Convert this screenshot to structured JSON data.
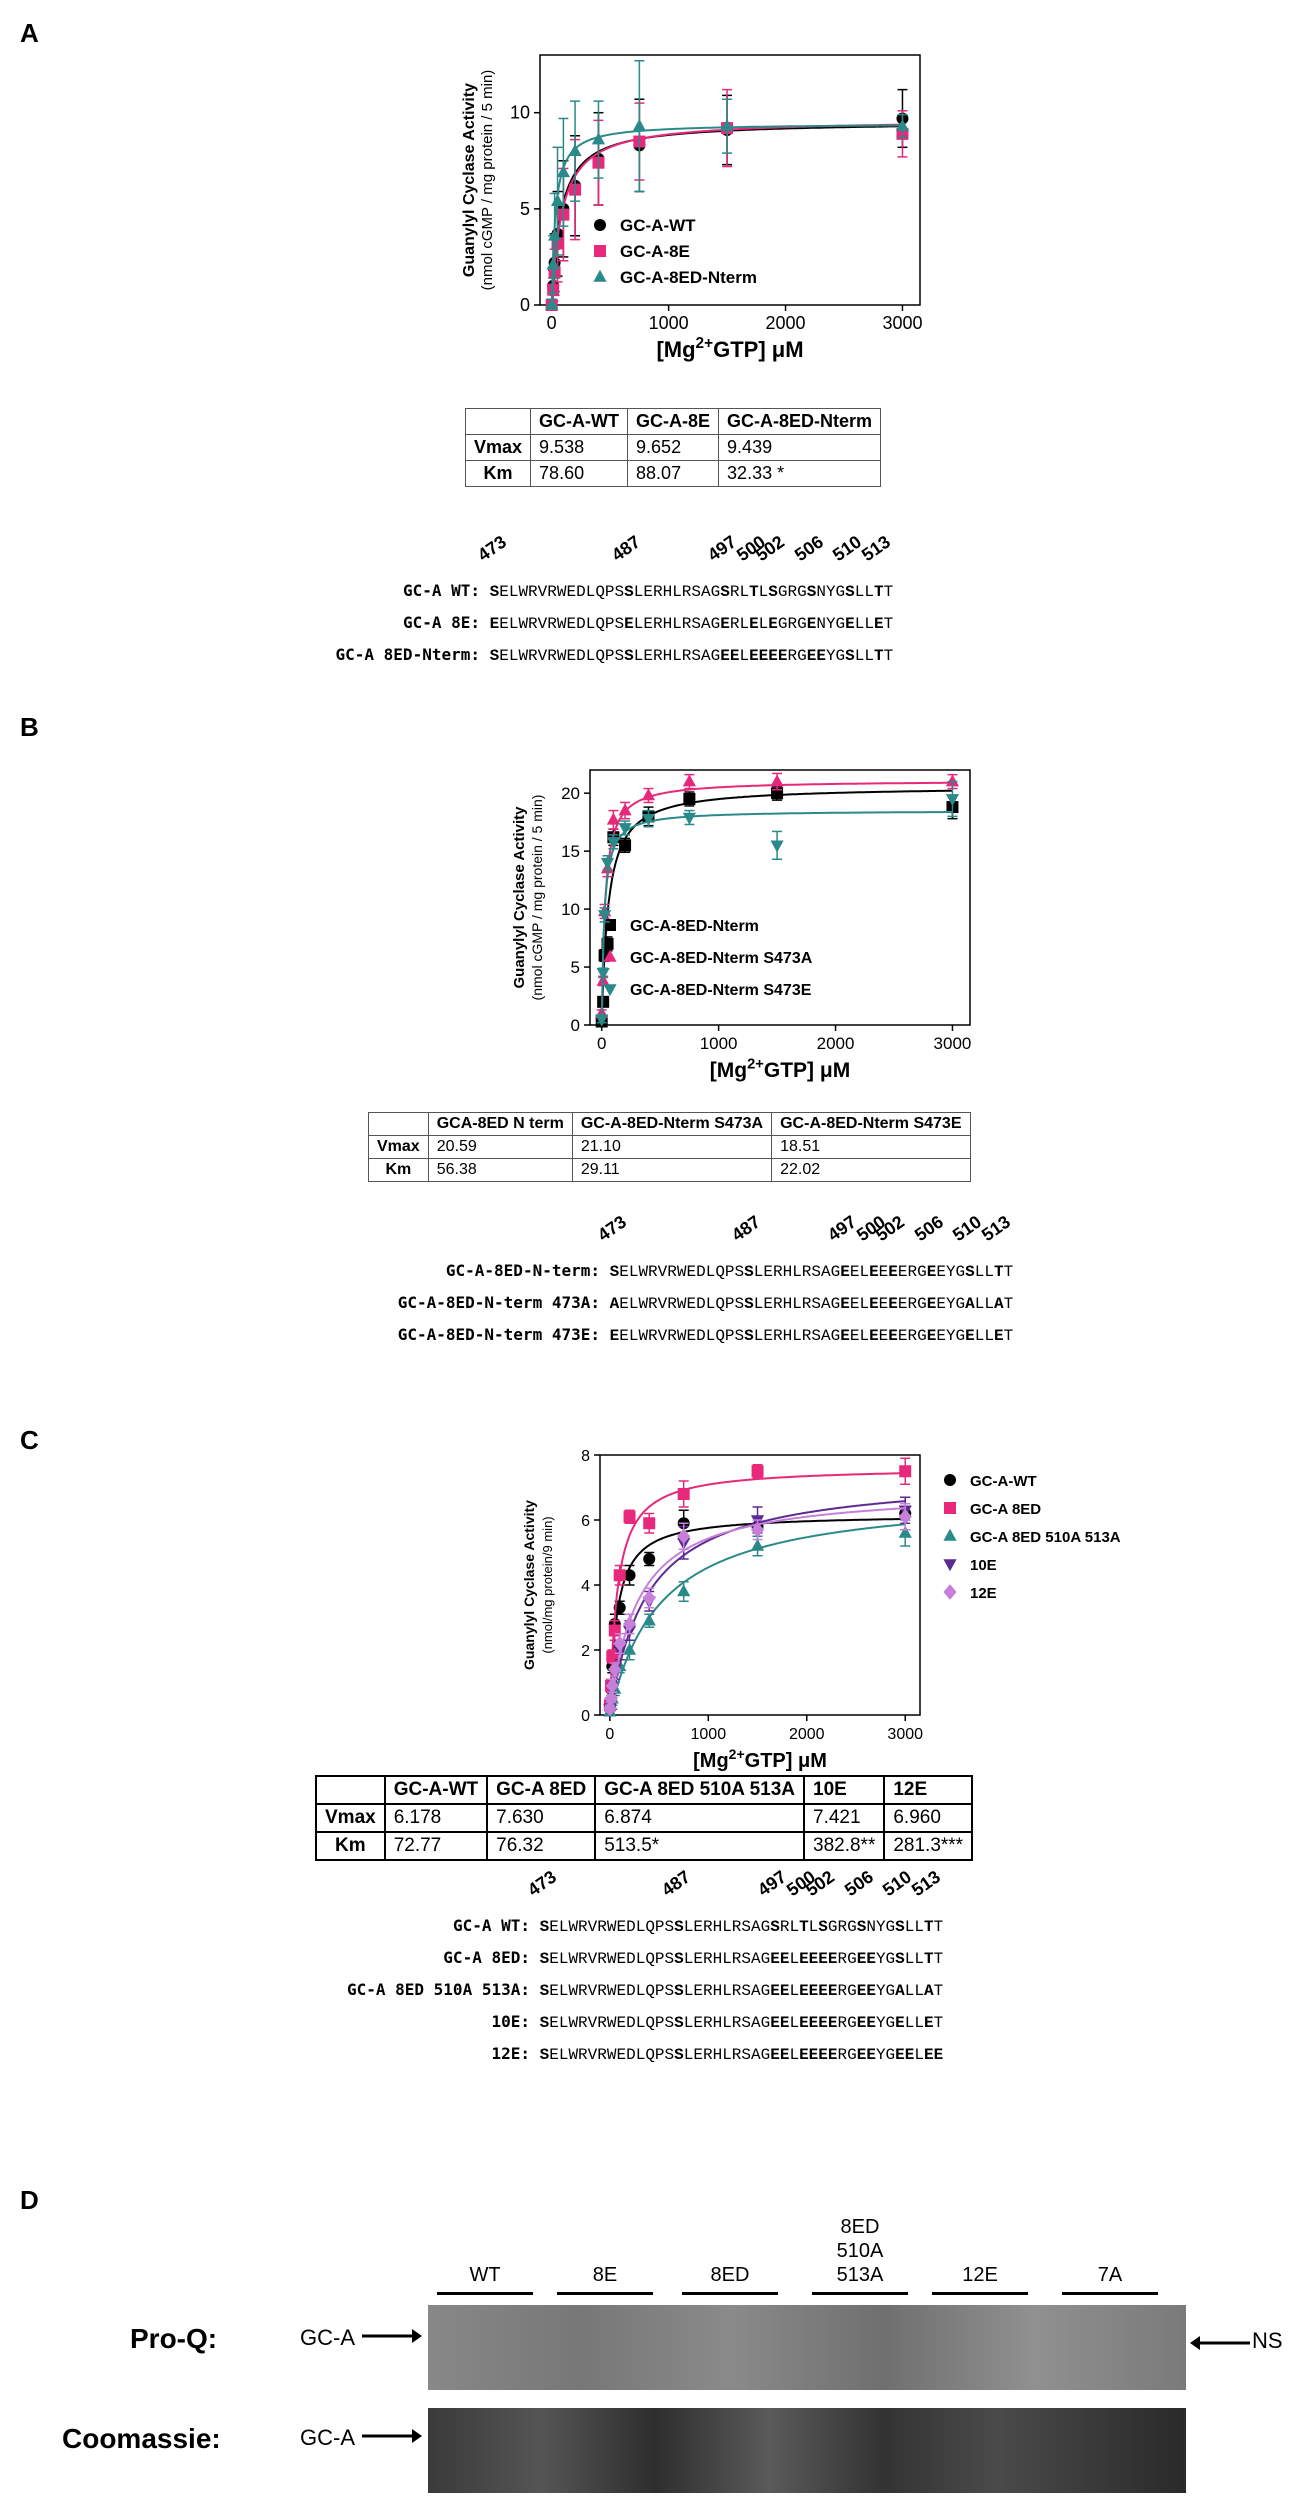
{
  "panels": {
    "A": {
      "letter": "A",
      "chart_data": {
        "type": "scatter",
        "ylabel_line1": "Guanylyl Cyclase Activity",
        "ylabel_line2": "(nmol cGMP / mg protein / 5 min)",
        "xlabel": "[Mg2+GTP] μM",
        "xlim": [
          -100,
          3150
        ],
        "ylim": [
          0,
          13
        ],
        "xticks": [
          0,
          1000,
          2000,
          3000
        ],
        "yticks": [
          0,
          5,
          10
        ],
        "legend": "right",
        "series": [
          {
            "name": "GC-A-WT",
            "color": "#000000",
            "marker": "circle",
            "vmax": 9.538,
            "km": 78.6,
            "x": [
              0,
              12.5,
              25,
              50,
              100,
              200,
              400,
              750,
              1500,
              3000
            ],
            "y": [
              0,
              1.0,
              2.2,
              3.7,
              5.0,
              6.2,
              7.6,
              8.3,
              9.1,
              9.7
            ],
            "err": [
              0.3,
              0.8,
              1.5,
              2.2,
              2.5,
              2.6,
              2.4,
              2.4,
              1.8,
              1.5
            ]
          },
          {
            "name": "GC-A-8E",
            "color": "#e8287a",
            "marker": "square",
            "vmax": 9.652,
            "km": 88.07,
            "x": [
              0,
              12.5,
              25,
              50,
              100,
              200,
              400,
              750,
              1500,
              3000
            ],
            "y": [
              0,
              0.8,
              1.7,
              3.2,
              4.7,
              6.0,
              7.4,
              8.5,
              9.2,
              8.9
            ],
            "err": [
              0.3,
              0.6,
              1.2,
              2.0,
              2.4,
              2.6,
              2.2,
              2.0,
              2.0,
              1.2
            ]
          },
          {
            "name": "GC-A-8ED-Nterm",
            "color": "#2a8a8a",
            "marker": "triangle",
            "vmax": 9.439,
            "km": 32.33,
            "x": [
              0,
              12.5,
              25,
              50,
              100,
              200,
              400,
              750,
              1500,
              3000
            ],
            "y": [
              0,
              2.1,
              3.6,
              5.4,
              6.9,
              8.0,
              8.6,
              9.3,
              9.3,
              9.3
            ],
            "err": [
              0.3,
              1.5,
              2.2,
              2.8,
              2.8,
              2.6,
              2.0,
              3.4,
              1.4,
              0.6
            ]
          }
        ]
      },
      "table": {
        "headers": [
          "",
          "GC-A-WT",
          "GC-A-8E",
          "GC-A-8ED-Nterm"
        ],
        "rows": [
          [
            "Vmax",
            "9.538",
            "9.652",
            "9.439"
          ],
          [
            "Km",
            "78.60",
            "88.07",
            "32.33 *"
          ]
        ]
      },
      "positions": [
        "473",
        "487",
        "497",
        "500",
        "502",
        "506",
        "510",
        "513"
      ],
      "sequences": [
        {
          "label": "GC-A WT:",
          "seq": "SELWRVRWEDLQPSSLERHLRSAGSRLTLSGRGSNYGSLLTT"
        },
        {
          "label": "GC-A 8E:",
          "seq": "EELWRVRWEDLQPSELERHLRSAGERLELEGRGENYGELLET"
        },
        {
          "label": "GC-A 8ED-Nterm:",
          "seq": "SELWRVRWEDLQPSSLERHLRSAGEELEEEERGEEYGSLLTT"
        }
      ]
    },
    "B": {
      "letter": "B",
      "chart_data": {
        "type": "scatter",
        "ylabel_line1": "Guanylyl Cyclase Activity",
        "ylabel_line2": "(nmol cGMP / mg protein / 5 min)",
        "xlabel": "[Mg2+GTP] μM",
        "xlim": [
          -100,
          3150
        ],
        "ylim": [
          0,
          22
        ],
        "xticks": [
          0,
          1000,
          2000,
          3000
        ],
        "yticks": [
          0,
          5,
          10,
          15,
          20
        ],
        "legend": "right",
        "series": [
          {
            "name": "GC-A-8ED-Nterm",
            "color": "#000000",
            "marker": "square",
            "vmax": 20.59,
            "km": 56.38,
            "x": [
              0,
              12.5,
              25,
              50,
              100,
              200,
              400,
              750,
              1500,
              3000
            ],
            "y": [
              0.3,
              2.0,
              6.0,
              7.0,
              16.2,
              15.5,
              18.0,
              19.5,
              20.0,
              18.8
            ],
            "err": [
              0.2,
              0.3,
              0.5,
              0.6,
              0.7,
              0.6,
              0.8,
              0.6,
              0.6,
              1.0
            ]
          },
          {
            "name": "GC-A-8ED-Nterm S473A",
            "color": "#e8287a",
            "marker": "triangle",
            "vmax": 21.1,
            "km": 29.11,
            "x": [
              0,
              12.5,
              25,
              50,
              100,
              200,
              400,
              750,
              1500,
              3000
            ],
            "y": [
              1.0,
              3.8,
              9.8,
              13.5,
              17.7,
              18.5,
              19.8,
              21.0,
              21.0,
              21.0
            ],
            "err": [
              0.3,
              0.4,
              0.6,
              0.7,
              0.8,
              0.7,
              0.6,
              0.6,
              0.7,
              0.6
            ]
          },
          {
            "name": "GC-A-8ED-Nterm S473E",
            "color": "#2a8a8a",
            "marker": "triangle-down",
            "vmax": 18.51,
            "km": 22.02,
            "x": [
              0,
              12.5,
              25,
              50,
              100,
              200,
              400,
              750,
              1500,
              3000
            ],
            "y": [
              0.5,
              4.5,
              9.5,
              14.0,
              15.8,
              17.0,
              17.8,
              17.9,
              15.5,
              19.5
            ],
            "err": [
              0.3,
              0.4,
              0.6,
              0.6,
              0.6,
              0.6,
              0.7,
              0.6,
              1.2,
              1.5
            ]
          }
        ]
      },
      "table": {
        "headers": [
          "",
          "GCA-8ED N term",
          "GC-A-8ED-Nterm S473A",
          "GC-A-8ED-Nterm S473E"
        ],
        "rows": [
          [
            "Vmax",
            "20.59",
            "21.10",
            "18.51"
          ],
          [
            "Km",
            "56.38",
            "29.11",
            "22.02"
          ]
        ]
      },
      "positions": [
        "473",
        "487",
        "497",
        "500",
        "502",
        "506",
        "510",
        "513"
      ],
      "sequences": [
        {
          "label": "GC-A-8ED-N-term:",
          "seq": "SELWRVRWEDLQPSSLERHLRSAGEELEEEERGEEYGSLLTT"
        },
        {
          "label": "GC-A-8ED-N-term 473A:",
          "seq": "AELWRVRWEDLQPSSLERHLRSAGEELEEEERGEEYGALLAT"
        },
        {
          "label": "GC-A-8ED-N-term 473E:",
          "seq": "EELWRVRWEDLQPSSLERHLRSAGEELEEEERGEEYGELLET"
        }
      ]
    },
    "C": {
      "letter": "C",
      "chart_data": {
        "type": "scatter",
        "ylabel_line1": "Guanylyl Cyclase Activity",
        "ylabel_line2": "(nmol/mg protein/9 min)",
        "xlabel": "[Mg2+GTP] μM",
        "xlim": [
          -100,
          3150
        ],
        "ylim": [
          0,
          8
        ],
        "xticks": [
          0,
          1000,
          2000,
          3000
        ],
        "yticks": [
          0,
          2,
          4,
          6,
          8
        ],
        "legend": "right",
        "series": [
          {
            "name": "GC-A-WT",
            "color": "#000000",
            "marker": "circle",
            "vmax": 6.178,
            "km": 72.77,
            "x": [
              0,
              12.5,
              25,
              50,
              100,
              200,
              400,
              750,
              1500,
              3000
            ],
            "y": [
              0.3,
              0.8,
              1.5,
              2.8,
              3.3,
              4.3,
              4.8,
              5.9,
              5.8,
              6.2
            ],
            "err": [
              0.1,
              0.2,
              0.2,
              0.3,
              0.2,
              0.3,
              0.2,
              0.4,
              0.3,
              0.5
            ]
          },
          {
            "name": "GC-A 8ED",
            "color": "#e8287a",
            "marker": "square",
            "vmax": 7.63,
            "km": 76.32,
            "x": [
              0,
              12.5,
              25,
              50,
              100,
              200,
              400,
              750,
              1500,
              3000
            ],
            "y": [
              0.3,
              0.9,
              1.8,
              2.6,
              4.3,
              6.1,
              5.9,
              6.8,
              7.5,
              7.5
            ],
            "err": [
              0.1,
              0.2,
              0.2,
              0.3,
              0.3,
              0.2,
              0.3,
              0.4,
              0.2,
              0.4
            ]
          },
          {
            "name": "GC-A 8ED 510A 513A",
            "color": "#2a8a8a",
            "marker": "triangle",
            "vmax": 6.874,
            "km": 513.5,
            "x": [
              0,
              12.5,
              25,
              50,
              100,
              200,
              400,
              750,
              1500,
              3000
            ],
            "y": [
              0.1,
              0.3,
              0.5,
              0.8,
              1.5,
              2.0,
              2.9,
              3.8,
              5.2,
              5.6
            ],
            "err": [
              0.1,
              0.1,
              0.2,
              0.2,
              0.2,
              0.3,
              0.2,
              0.3,
              0.3,
              0.4
            ]
          },
          {
            "name": "10E",
            "color": "#5b2b91",
            "marker": "triangle-down",
            "vmax": 7.421,
            "km": 382.8,
            "x": [
              0,
              12.5,
              25,
              50,
              100,
              200,
              400,
              750,
              1500,
              3000
            ],
            "y": [
              0.2,
              0.4,
              0.8,
              1.3,
              2.0,
              2.6,
              3.5,
              5.3,
              6.0,
              6.3
            ],
            "err": [
              0.1,
              0.1,
              0.2,
              0.2,
              0.3,
              0.3,
              0.3,
              0.5,
              0.4,
              0.4
            ]
          },
          {
            "name": "12E",
            "color": "#c77fd9",
            "marker": "diamond",
            "vmax": 6.96,
            "km": 281.3,
            "x": [
              0,
              12.5,
              25,
              50,
              100,
              200,
              400,
              750,
              1500,
              3000
            ],
            "y": [
              0.2,
              0.5,
              0.9,
              1.4,
              2.2,
              2.8,
              3.6,
              5.5,
              5.7,
              6.1
            ],
            "err": [
              0.1,
              0.1,
              0.2,
              0.2,
              0.3,
              0.3,
              0.3,
              0.4,
              0.3,
              0.4
            ]
          }
        ]
      },
      "table": {
        "headers": [
          "",
          "GC-A-WT",
          "GC-A 8ED",
          "GC-A 8ED 510A 513A",
          "10E",
          "12E"
        ],
        "rows": [
          [
            "Vmax",
            "6.178",
            "7.630",
            "6.874",
            "7.421",
            "6.960"
          ],
          [
            "Km",
            "72.77",
            "76.32",
            "513.5*",
            "382.8**",
            "281.3***"
          ]
        ]
      },
      "positions": [
        "473",
        "487",
        "497",
        "500",
        "502",
        "506",
        "510",
        "513"
      ],
      "sequences": [
        {
          "label": "GC-A WT:",
          "seq": "SELWRVRWEDLQPSSLERHLRSAGSRLTLSGRGSNYGSLLTT"
        },
        {
          "label": "GC-A 8ED:",
          "seq": "SELWRVRWEDLQPSSLERHLRSAGEELEEEERGEEYGSLLTT"
        },
        {
          "label": "GC-A 8ED 510A 513A:",
          "seq": "SELWRVRWEDLQPSSLERHLRSAGEELEEEERGEEYGALLAT"
        },
        {
          "label": "10E:",
          "seq": "SELWRVRWEDLQPSSLERHLRSAGEELEEEERGEEYGELLET"
        },
        {
          "label": "12E:",
          "seq": "SELWRVRWEDLQPSSLERHLRSAGEELEEEERGEEYGEELEE"
        }
      ]
    },
    "D": {
      "letter": "D",
      "lanes": [
        "WT",
        "8E",
        "8ED",
        "8ED\n510A\n513A",
        "12E",
        "7A"
      ],
      "pro_q_label": "Pro-Q:",
      "coomassie_label": "Coomassie:",
      "band_label": "GC-A",
      "ns_label": "NS"
    }
  }
}
